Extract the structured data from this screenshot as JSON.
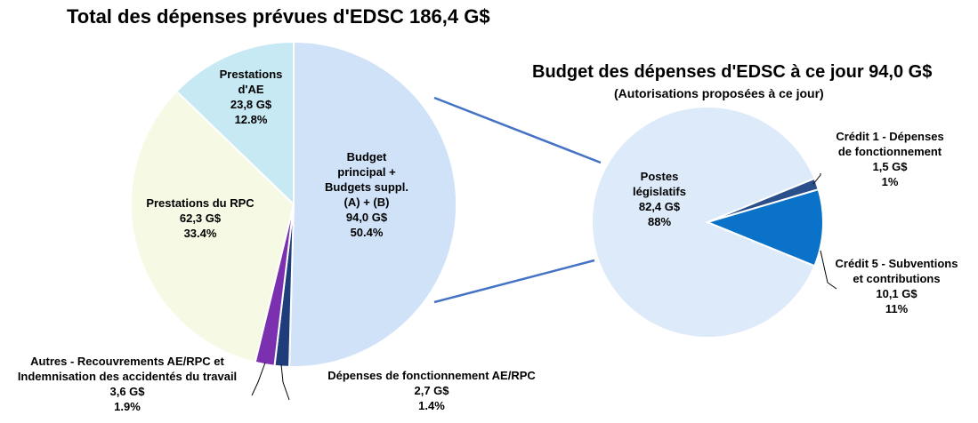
{
  "colors": {
    "main_budget": "#cfe2f8",
    "ei_benefits": "#c7e9f3",
    "cpp_benefits": "#f6f9e4",
    "others": "#7b30b0",
    "op_expenses": "#1f3d7a",
    "statutory": "#ddeafa",
    "vote1": "#2b4f8a",
    "vote5": "#0a72c8",
    "connector": "#4472c4"
  },
  "chart_data": [
    {
      "type": "pie",
      "title": "Total des dépenses prévues d'EDSC 186,4 G$",
      "unit": "G$",
      "slices": [
        {
          "name": "Budget principal + Budgets suppl. (A) + (B)",
          "lines": [
            "Budget",
            "principal +",
            "Budgets suppl.",
            "(A) + (B)",
            "94,0 G$",
            "50.4%"
          ],
          "value": 94.0,
          "percent": 50.4
        },
        {
          "name": "Dépenses de fonctionnement AE/RPC",
          "lines": [
            "Dépenses de fonctionnement AE/RPC",
            "2,7 G$",
            "1.4%"
          ],
          "value": 2.7,
          "percent": 1.4
        },
        {
          "name": "Autres - Recouvrements AE/RPC et Indemnisation des accidentés du travail",
          "lines": [
            "Autres - Recouvrements AE/RPC et",
            "Indemnisation des accidentés du travail",
            "3,6 G$",
            "1.9%"
          ],
          "value": 3.6,
          "percent": 1.9
        },
        {
          "name": "Prestations du RPC",
          "lines": [
            "Prestations du RPC",
            "62,3 G$",
            "33.4%"
          ],
          "value": 62.3,
          "percent": 33.4
        },
        {
          "name": "Prestations d'AE",
          "lines": [
            "Prestations",
            "d'AE",
            "23,8 G$",
            "12.8%"
          ],
          "value": 23.8,
          "percent": 12.8
        }
      ]
    },
    {
      "type": "pie",
      "title": "Budget des dépenses d'EDSC à ce jour 94,0 G$",
      "subtitle": "(Autorisations proposées à ce jour)",
      "unit": "G$",
      "slices": [
        {
          "name": "Postes législatifs",
          "lines": [
            "Postes",
            "législatifs",
            "82,4 G$",
            "88%"
          ],
          "value": 82.4,
          "percent": 88
        },
        {
          "name": "Crédit 1 - Dépenses de fonctionnement",
          "lines": [
            "Crédit 1 - Dépenses",
            "de fonctionnement",
            "1,5 G$",
            "1%"
          ],
          "value": 1.5,
          "percent": 1
        },
        {
          "name": "Crédit 5 - Subventions et contributions",
          "lines": [
            "Crédit 5 - Subventions",
            "et contributions",
            "10,1 G$",
            "11%"
          ],
          "value": 10.1,
          "percent": 11
        }
      ]
    }
  ]
}
